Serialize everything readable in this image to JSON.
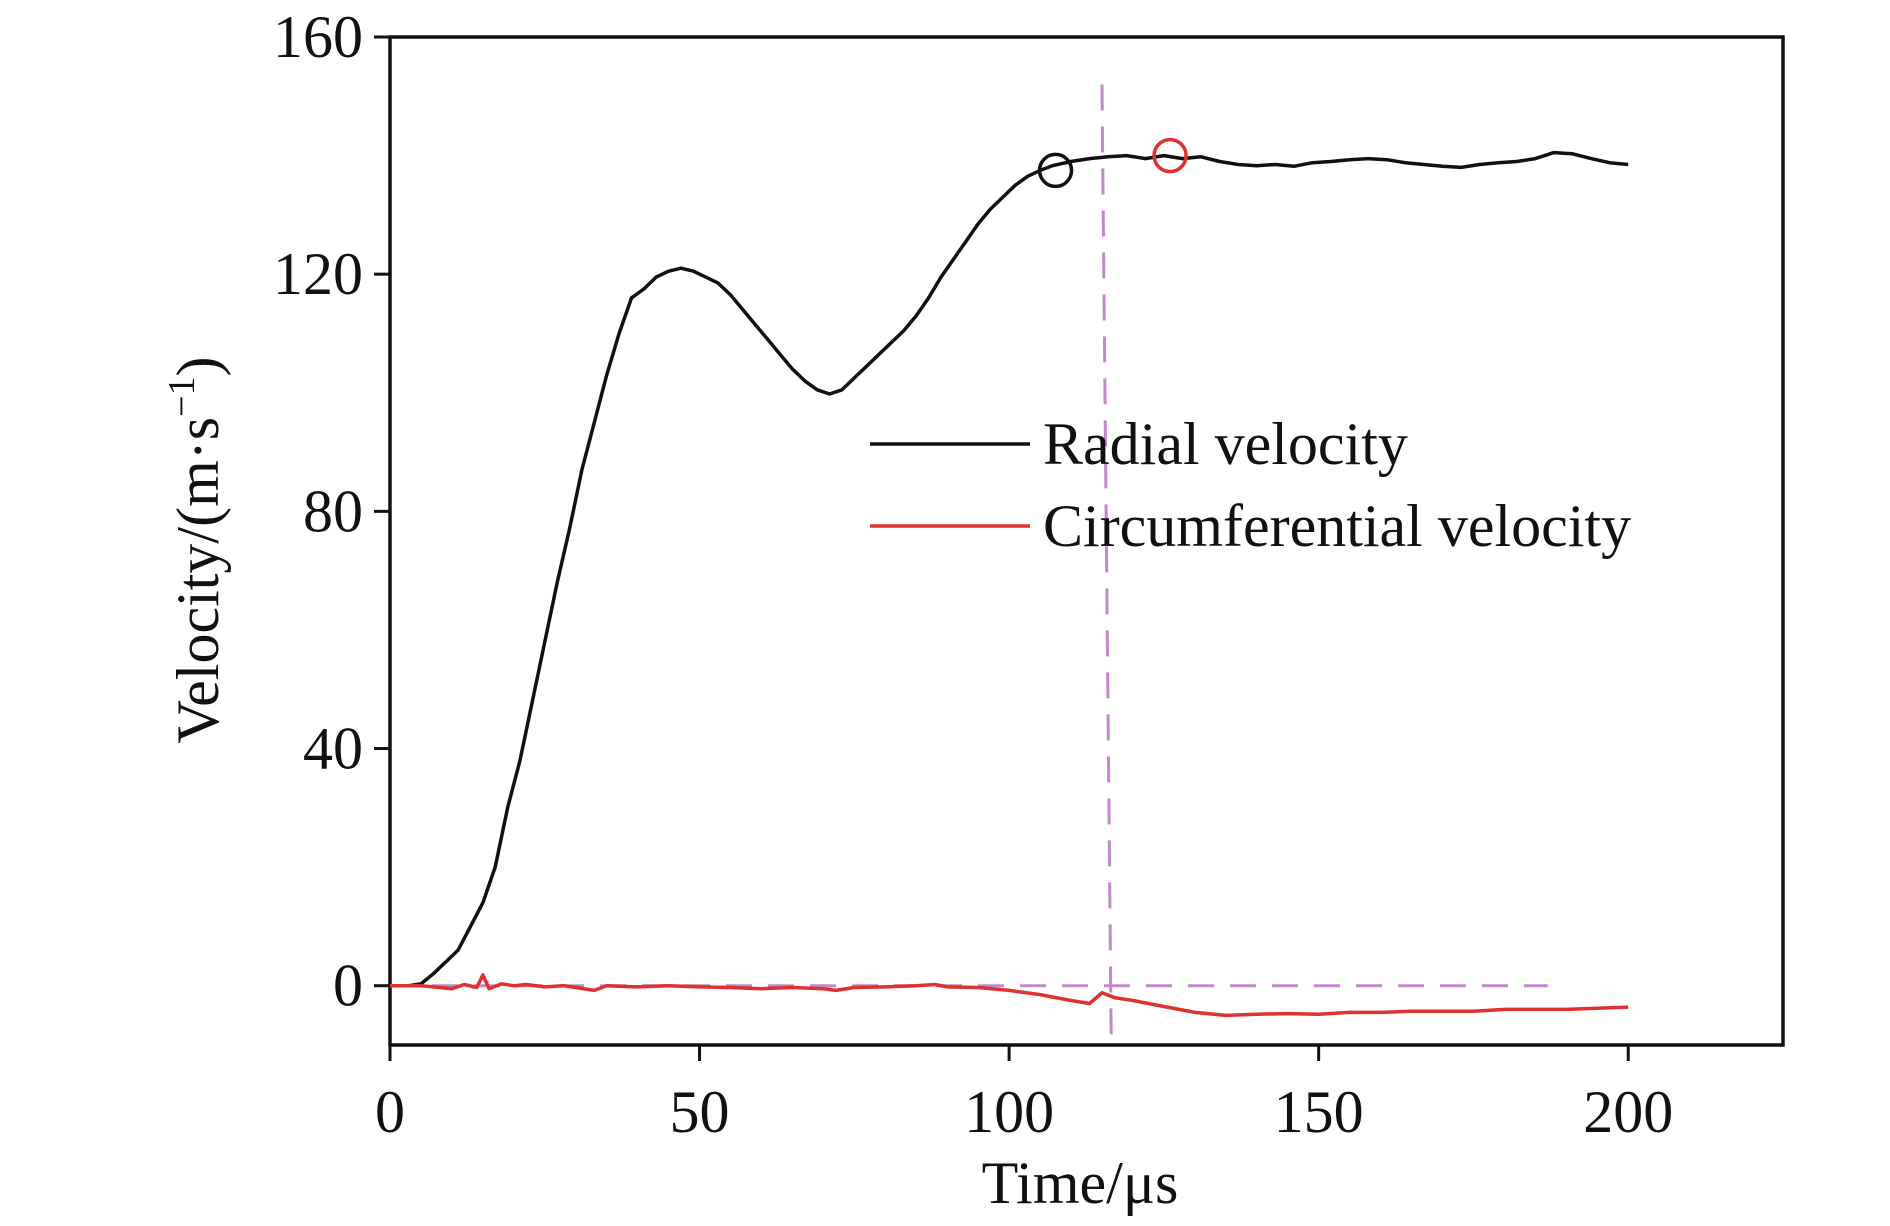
{
  "chart_data": {
    "type": "line",
    "title": "",
    "xlabel": "Time/μs",
    "ylabel": "Velocity/(m·s",
    "ylabel_exponent": "−1",
    "ylabel_close": ")",
    "xlim": [
      0,
      225
    ],
    "ylim": [
      -10,
      160
    ],
    "xticks": [
      0,
      50,
      100,
      150,
      200
    ],
    "xtick_labels": [
      "0",
      "50",
      "100",
      "150",
      "200"
    ],
    "yticks": [
      0,
      40,
      80,
      120,
      160
    ],
    "ytick_labels": [
      "0",
      "40",
      "80",
      "120",
      "160"
    ],
    "grid": false,
    "legend_position": "center-right",
    "series": [
      {
        "name": "Radial velocity",
        "color": "#111111",
        "x": [
          0,
          3,
          5,
          7,
          9,
          11,
          13,
          15,
          17,
          19,
          21,
          23,
          25,
          27,
          29,
          31,
          33,
          35,
          37,
          39,
          41,
          43,
          45,
          47,
          49,
          51,
          53,
          55,
          57,
          59,
          61,
          63,
          65,
          67,
          69,
          71,
          73,
          75,
          77,
          79,
          81,
          83,
          85,
          87,
          89,
          91,
          93,
          95,
          97,
          99,
          101,
          103,
          105,
          107,
          110,
          113,
          116,
          119,
          122,
          125,
          128,
          131,
          134,
          137,
          140,
          143,
          146,
          149,
          152,
          155,
          158,
          161,
          164,
          167,
          170,
          173,
          176,
          179,
          182,
          185,
          188,
          191,
          194,
          197,
          200
        ],
        "values": [
          0,
          0,
          0.3,
          2,
          4,
          6,
          10,
          14,
          20,
          30,
          38,
          48,
          58,
          68,
          77,
          87,
          95,
          103,
          110,
          116,
          117.5,
          119.5,
          120.5,
          121,
          120.5,
          119.5,
          118.5,
          116.5,
          114,
          111.5,
          109,
          106.5,
          104,
          102,
          100.5,
          99.8,
          100.5,
          102.5,
          104.5,
          106.5,
          108.5,
          110.5,
          113,
          116,
          119.5,
          122.5,
          125.5,
          128.5,
          131,
          133,
          135,
          136.5,
          137.5,
          138.3,
          139,
          139.5,
          139.8,
          140,
          139.5,
          140,
          139.5,
          139.8,
          139,
          138.5,
          138.3,
          138.5,
          138.2,
          138.8,
          139,
          139.3,
          139.5,
          139.3,
          138.8,
          138.5,
          138.2,
          138,
          138.5,
          138.8,
          139,
          139.5,
          140.5,
          140.3,
          139.5,
          138.8,
          138.5
        ]
      },
      {
        "name": "Circumferential velocity",
        "color": "#e0302f",
        "x": [
          0,
          5,
          8,
          10,
          12,
          14,
          15,
          16,
          18,
          20,
          22,
          25,
          28,
          30,
          33,
          35,
          40,
          45,
          50,
          55,
          60,
          65,
          70,
          72,
          75,
          80,
          85,
          88,
          90,
          95,
          100,
          105,
          110,
          113,
          115,
          117,
          120,
          125,
          130,
          135,
          140,
          145,
          150,
          155,
          160,
          165,
          170,
          175,
          180,
          185,
          190,
          195,
          200
        ],
        "values": [
          0,
          0,
          -0.3,
          -0.5,
          0.2,
          -0.3,
          1.8,
          -0.5,
          0.3,
          0,
          0.2,
          -0.2,
          0,
          -0.3,
          -0.8,
          0,
          -0.2,
          0,
          -0.2,
          -0.3,
          -0.5,
          -0.3,
          -0.5,
          -0.8,
          -0.3,
          -0.2,
          0,
          0.2,
          -0.2,
          -0.3,
          -0.8,
          -1.5,
          -2.5,
          -3,
          -1.2,
          -2,
          -2.5,
          -3.5,
          -4.5,
          -5,
          -4.8,
          -4.7,
          -4.8,
          -4.5,
          -4.5,
          -4.3,
          -4.3,
          -4.3,
          -4,
          -4,
          -4,
          -3.8,
          -3.6
        ]
      }
    ],
    "reference_lines": [
      {
        "kind": "vertical",
        "x": 115,
        "y_from": 152,
        "y_to": -10,
        "color": "#c08ac8",
        "style": "dashed"
      },
      {
        "kind": "horizontal",
        "y": 0,
        "x_from": 0,
        "x_to": 187,
        "color": "#c08ac8",
        "style": "dashed"
      }
    ],
    "markers": [
      {
        "x": 107.5,
        "y": 137.5,
        "color": "#111111",
        "shape": "open-circle"
      },
      {
        "x": 126,
        "y": 140,
        "color": "#e0302f",
        "shape": "open-circle"
      }
    ]
  }
}
